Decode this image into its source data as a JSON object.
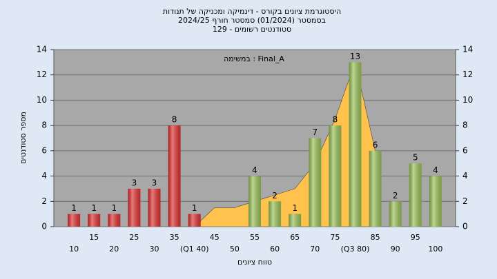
{
  "chart_data": {
    "type": "bar",
    "title": [
      "היסטוגרמת ציונים בקורס - דינמיקה ומכניקה של תנודות",
      "בסמסטר  (01/2024)  סמסטר חורף 2024/25",
      "סטודנטים רשומים - 129"
    ],
    "annotation": "במשימה : Final_A",
    "x_label": "טווח ציונים",
    "y_label": "מספר סטודנטים",
    "categories": [
      "10",
      "15",
      "20",
      "25",
      "30",
      "35",
      "(Q1 40)",
      "45",
      "50",
      "55",
      "60",
      "65",
      "70",
      "75",
      "(Q3 80)",
      "85",
      "90",
      "95",
      "100"
    ],
    "values": [
      1,
      1,
      1,
      3,
      3,
      8,
      1,
      0,
      0,
      4,
      2,
      1,
      7,
      8,
      13,
      6,
      2,
      5,
      4
    ],
    "colors": [
      "#e03232",
      "#e03232",
      "#e03232",
      "#e03232",
      "#e03232",
      "#e03232",
      "#e03232",
      "#e03232",
      "#e03232",
      "#9cc35a",
      "#9cc35a",
      "#9cc35a",
      "#9cc35a",
      "#9cc35a",
      "#9cc35a",
      "#9cc35a",
      "#9cc35a",
      "#9cc35a",
      "#9cc35a"
    ],
    "area": {
      "color": "#ffc34d",
      "values": [
        null,
        null,
        null,
        null,
        null,
        null,
        0,
        1.5,
        1.5,
        2,
        2.5,
        3,
        5,
        8.5,
        13,
        6,
        null,
        null,
        null
      ]
    },
    "ylim": [
      0,
      14
    ],
    "yticks": [
      0,
      2,
      4,
      6,
      8,
      10,
      12,
      14
    ],
    "grid": true
  }
}
